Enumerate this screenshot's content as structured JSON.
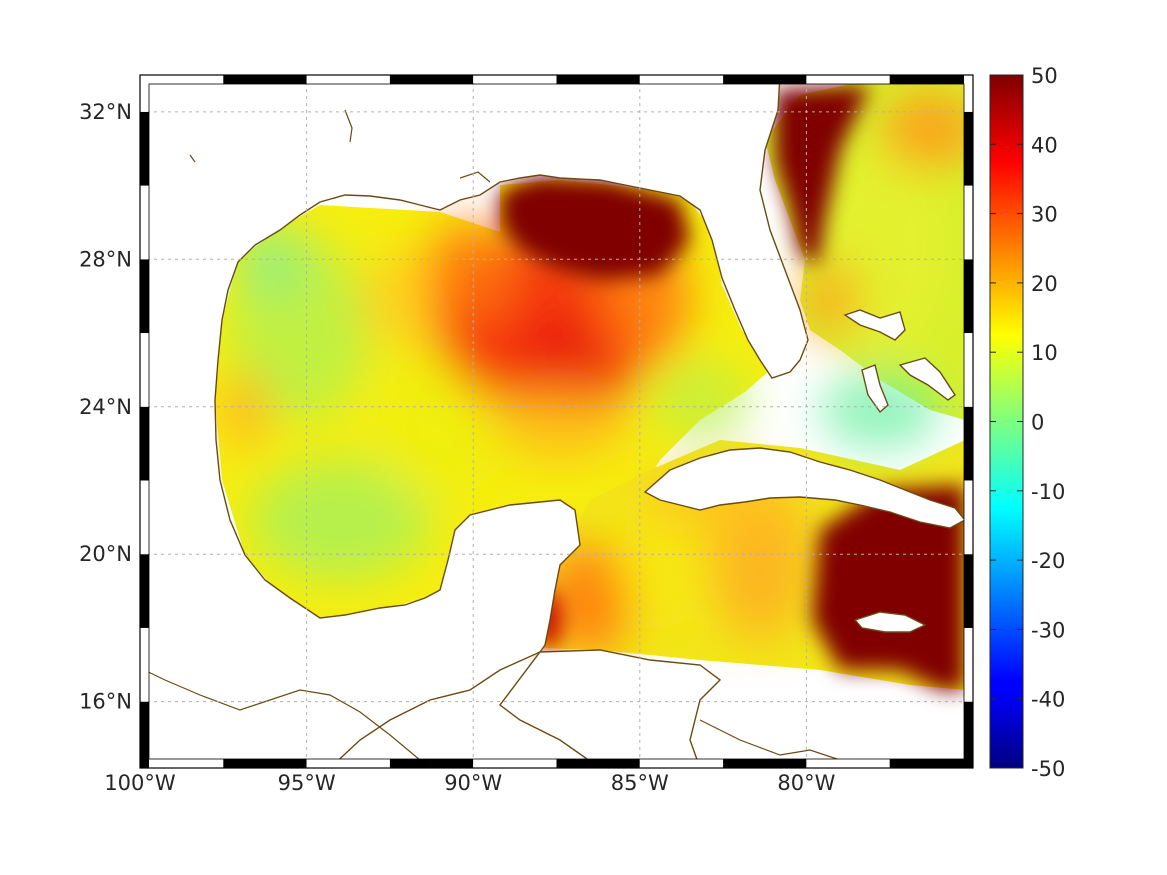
{
  "map": {
    "lon_range": [
      -100,
      -75
    ],
    "lat_range": [
      14.2,
      33.0
    ],
    "lon_ticks": [
      {
        "value": -100,
        "label": "100°W"
      },
      {
        "value": -95,
        "label": "95°W"
      },
      {
        "value": -90,
        "label": "90°W"
      },
      {
        "value": -85,
        "label": "85°W"
      },
      {
        "value": -80,
        "label": "80°W"
      }
    ],
    "lat_ticks": [
      {
        "value": 32,
        "label": "32°N"
      },
      {
        "value": 28,
        "label": "28°N"
      },
      {
        "value": 24,
        "label": "24°N"
      },
      {
        "value": 20,
        "label": "20°N"
      },
      {
        "value": 16,
        "label": "16°N"
      }
    ],
    "grid": true,
    "frame": "black-white alternating",
    "coastline_color": "#6b4a12",
    "land_color": "#ffffff",
    "colormap": "jet"
  },
  "colorbar": {
    "range": [
      -50,
      50
    ],
    "ticks": [
      {
        "value": 50,
        "label": "50"
      },
      {
        "value": 40,
        "label": "40"
      },
      {
        "value": 30,
        "label": "30"
      },
      {
        "value": 20,
        "label": "20"
      },
      {
        "value": 10,
        "label": "10"
      },
      {
        "value": 0,
        "label": "0"
      },
      {
        "value": -10,
        "label": "-10"
      },
      {
        "value": -20,
        "label": "-20"
      },
      {
        "value": -30,
        "label": "-30"
      },
      {
        "value": -40,
        "label": "-40"
      },
      {
        "value": -50,
        "label": "-50"
      }
    ]
  }
}
